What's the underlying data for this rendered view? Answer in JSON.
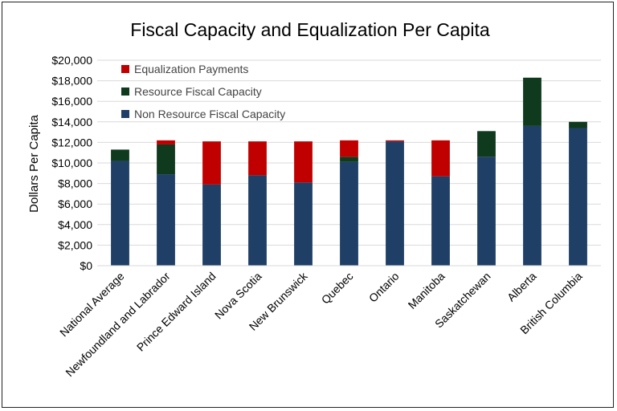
{
  "chart_data": {
    "type": "bar",
    "stacked": true,
    "title": "Fiscal Capacity and Equalization Per Capita",
    "xlabel": "",
    "ylabel": "Dollars Per Capita",
    "ylim": [
      0,
      20000
    ],
    "y_tick_step": 2000,
    "y_tick_format": "currency",
    "grid": true,
    "legend_position": "top-left",
    "categories": [
      "National Average",
      "Newfoundland and Labrador",
      "Prince Edward Island",
      "Nova Scotia",
      "New Brunswick",
      "Quebec",
      "Ontario",
      "Manitoba",
      "Saskatchewan",
      "Alberta",
      "British Columbia"
    ],
    "series": [
      {
        "name": "Non Resource Fiscal Capacity",
        "color": "#1F3F66",
        "values": [
          10200,
          8900,
          7900,
          8800,
          8100,
          10100,
          12100,
          8700,
          10600,
          13600,
          13400
        ]
      },
      {
        "name": "Resource Fiscal Capacity",
        "color": "#0F3A1E",
        "values": [
          1100,
          2900,
          0,
          0,
          0,
          500,
          0,
          0,
          2500,
          4700,
          600
        ]
      },
      {
        "name": "Equalization Payments",
        "color": "#C00000",
        "values": [
          0,
          400,
          4200,
          3300,
          4000,
          1600,
          100,
          3500,
          0,
          0,
          0
        ]
      }
    ],
    "legend_order": [
      "Equalization Payments",
      "Resource Fiscal Capacity",
      "Non Resource Fiscal Capacity"
    ]
  }
}
